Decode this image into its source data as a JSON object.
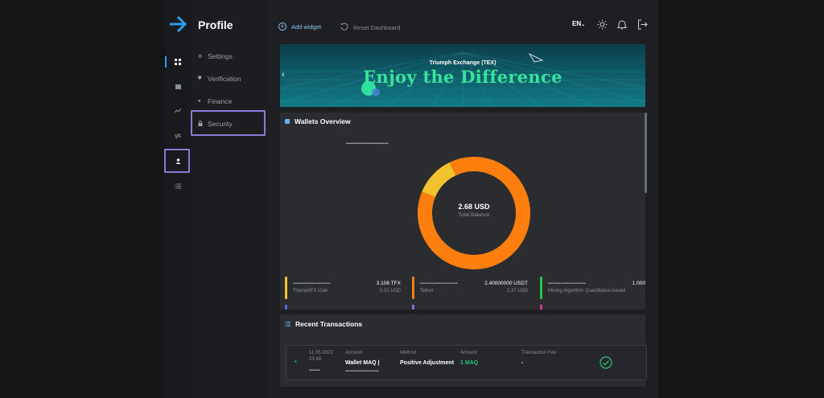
{
  "sidebar": {
    "title": "Profile",
    "items": [
      {
        "label": "Settings"
      },
      {
        "label": "Verification"
      },
      {
        "label": "Finance"
      },
      {
        "label": "Security"
      }
    ]
  },
  "topbar": {
    "add_widget": "Add widget",
    "reset_dashboard": "Reset Dashboard",
    "language": "EN"
  },
  "banner": {
    "subtitle": "Triumph Exchange (TEX)",
    "title": "Enjoy the Difference"
  },
  "wallets_overview": {
    "title": "Wallets Overview",
    "masked_header": "••••••••••••••••••••••••••••••",
    "total_value": "2.68 USD",
    "total_label": "Total Balance",
    "wallets": [
      {
        "masked": "••••••••••••••••••••••••",
        "amount": "3.106 TFX",
        "name": "TriumphFX Coin",
        "usd": "0.31 USD",
        "color": "#f2c12e"
      },
      {
        "masked": "••••••••••••••••••••••••",
        "amount": "2.40000000 USDT",
        "name": "Tether",
        "usd": "2.37 USD",
        "color": "#ff7f0e"
      },
      {
        "masked": "••••••••••••••••••••••••",
        "amount": "1.000",
        "name": "Mining Algorithm Quantitative-based",
        "usd": "",
        "color": "#2ec24b"
      }
    ]
  },
  "chart_data": {
    "type": "pie",
    "categories": [
      "Tether",
      "TriumphFX Coin"
    ],
    "values": [
      2.37,
      0.31
    ],
    "colors": [
      "#ff7f0e",
      "#f2c12e"
    ]
  },
  "transactions": {
    "title": "Recent Transactions",
    "headers": {
      "account": "Account",
      "method": "Method",
      "amount": "Amount",
      "fee": "Transaction Fee"
    },
    "rows": [
      {
        "date": "11.05.2023",
        "time": "23:48",
        "masked_id": "••••••••",
        "account": "Wallet MAQ |",
        "account_masked": "••••••••••••••••••••••••",
        "method": "Positive Adjustment",
        "amount": "1 MAQ",
        "fee": "-"
      }
    ]
  },
  "colors": {
    "accent": "#2d9bf0",
    "highlight": "#8a7ad8",
    "success": "#2ec27e"
  }
}
